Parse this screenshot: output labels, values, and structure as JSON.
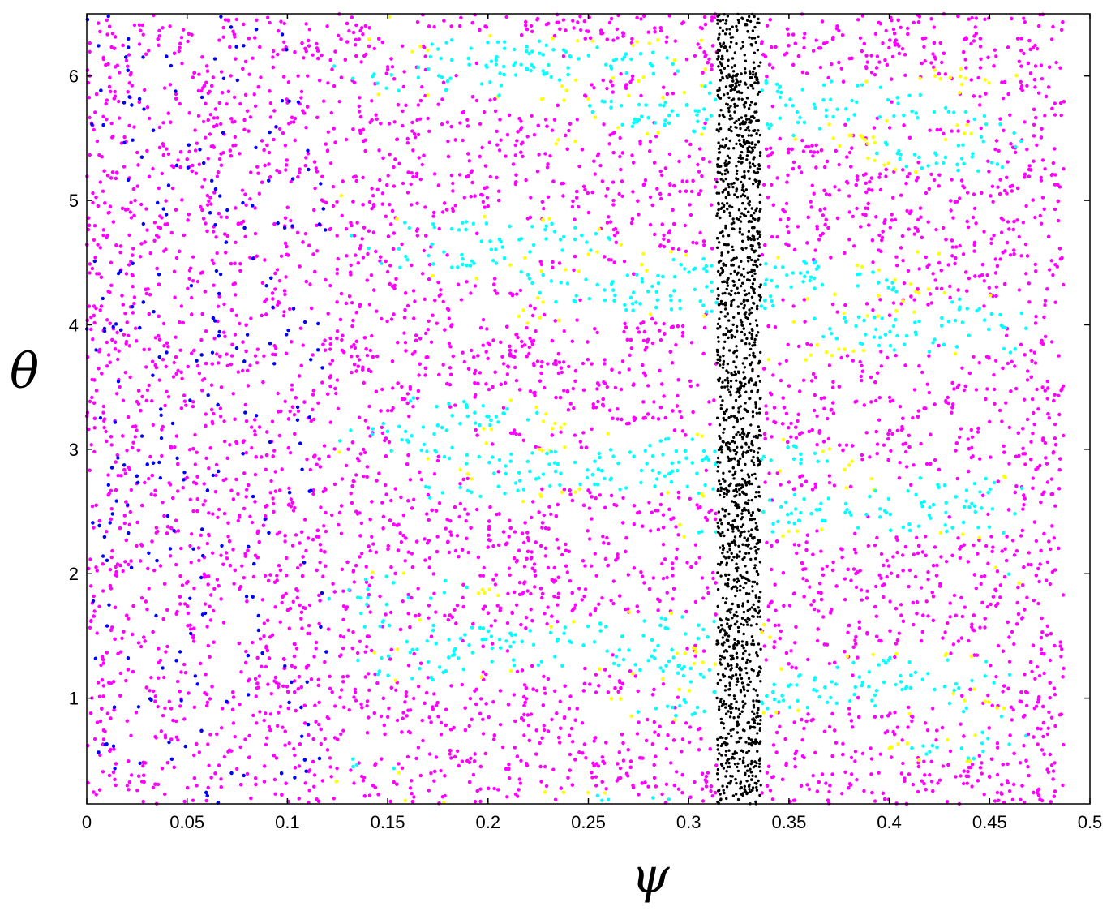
{
  "chart_data": {
    "type": "scatter",
    "title": "",
    "xlabel": "ψ",
    "ylabel": "θ",
    "xlim": [
      0,
      0.5
    ],
    "ylim": [
      0.15,
      6.5
    ],
    "xticks": [
      {
        "value": 0,
        "label": "0"
      },
      {
        "value": 0.05,
        "label": "0.05"
      },
      {
        "value": 0.1,
        "label": "0.1"
      },
      {
        "value": 0.15,
        "label": "0.15"
      },
      {
        "value": 0.2,
        "label": "0.2"
      },
      {
        "value": 0.25,
        "label": "0.25"
      },
      {
        "value": 0.3,
        "label": "0.3"
      },
      {
        "value": 0.35,
        "label": "0.35"
      },
      {
        "value": 0.4,
        "label": "0.4"
      },
      {
        "value": 0.45,
        "label": "0.45"
      },
      {
        "value": 0.5,
        "label": "0.5"
      }
    ],
    "yticks": [
      {
        "value": 1,
        "label": "1"
      },
      {
        "value": 2,
        "label": "2"
      },
      {
        "value": 3,
        "label": "3"
      },
      {
        "value": 4,
        "label": "4"
      },
      {
        "value": 5,
        "label": "5"
      },
      {
        "value": 6,
        "label": "6"
      }
    ],
    "grid": false,
    "legend": "none",
    "series": [
      {
        "color": "#ff00ff",
        "psi_range": [
          0,
          0.487
        ],
        "theta_range": [
          0.15,
          6.5
        ],
        "density": "dense, covers full domain"
      },
      {
        "color": "#0000ff",
        "psi_range": [
          0,
          0.12
        ],
        "theta_range": [
          0.15,
          6.5
        ],
        "density": "sparse, mixed with magenta"
      },
      {
        "color": "#00ffff",
        "psi_range": [
          0.11,
          0.46
        ],
        "theta_range": [
          0.15,
          6.5
        ],
        "density": "horizontal filament bands"
      },
      {
        "color": "#ffff00",
        "psi_range": [
          0.1,
          0.47
        ],
        "theta_range": [
          0.15,
          6.5
        ],
        "density": "thin filaments between bands"
      },
      {
        "color": "#000000",
        "psi_range": [
          0.314,
          0.336
        ],
        "theta_range": [
          0.15,
          6.5
        ],
        "density": "dense vertical strip"
      }
    ]
  }
}
